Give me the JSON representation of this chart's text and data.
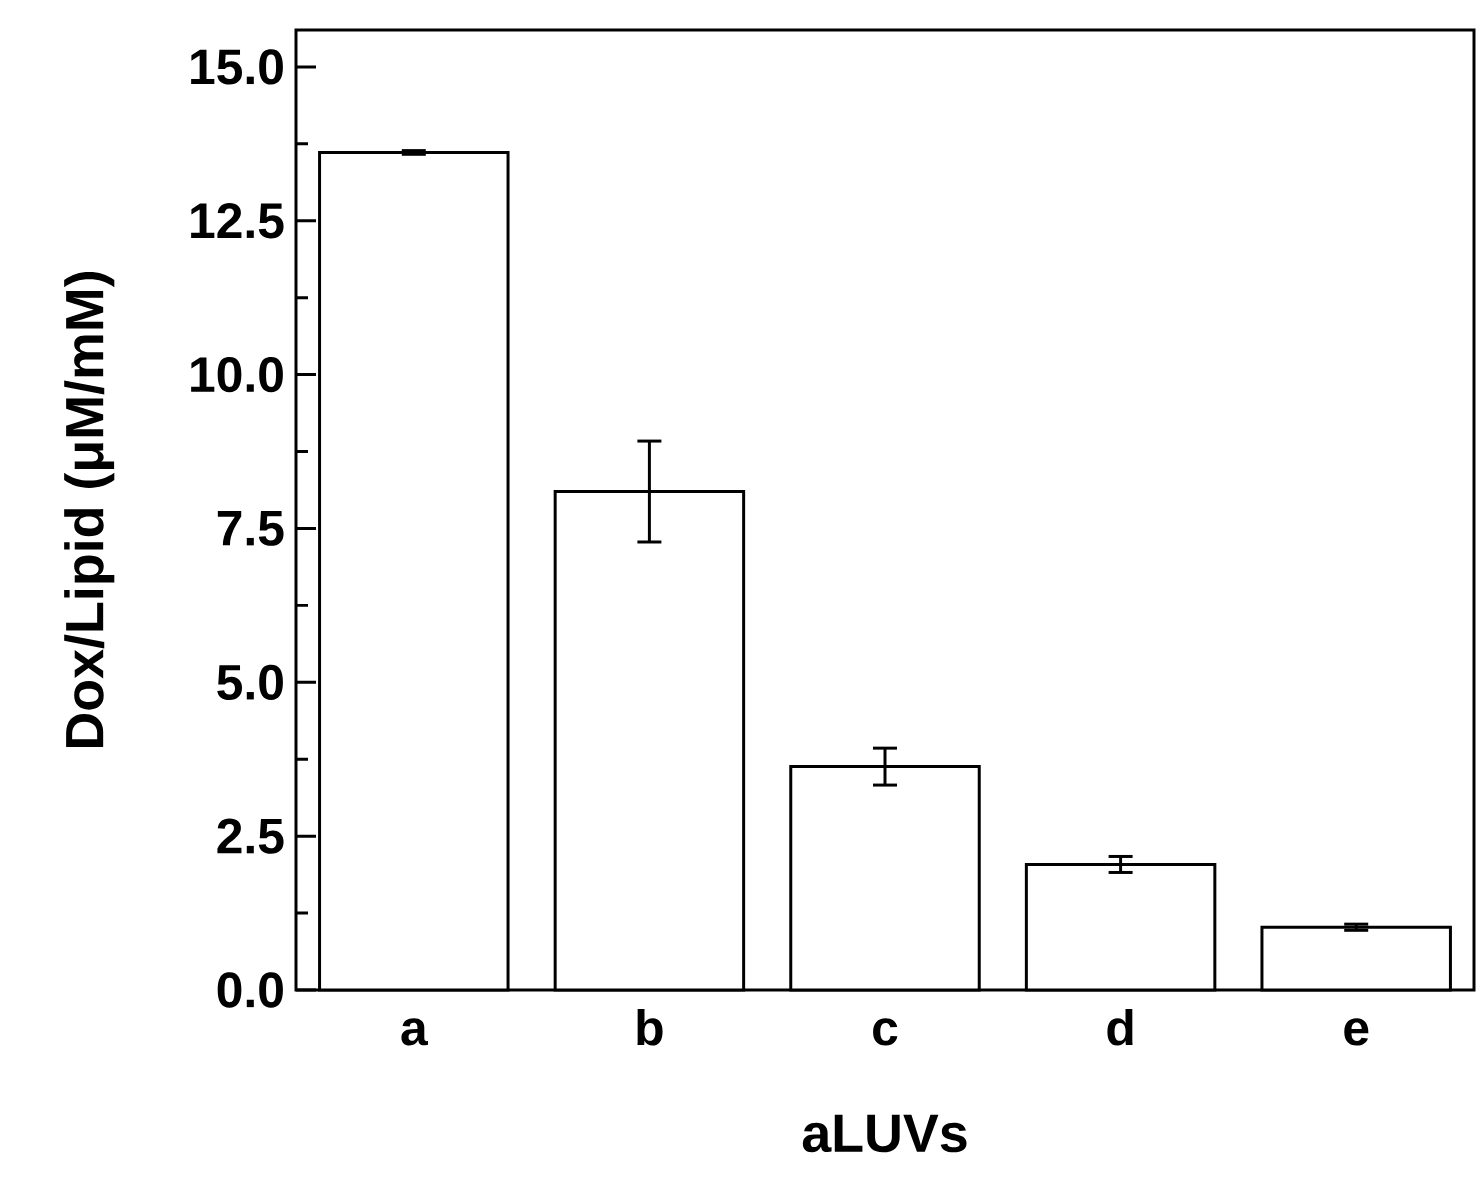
{
  "chart_data": {
    "type": "bar",
    "xlabel": "aLUVs",
    "ylabel": "Dox/Lipid (μM/mM)",
    "categories": [
      "a",
      "b",
      "c",
      "d",
      "e"
    ],
    "values": [
      13.61,
      8.1,
      3.63,
      2.04,
      1.02
    ],
    "errors": [
      0.03,
      0.82,
      0.3,
      0.13,
      0.05
    ],
    "color": "#ffffff",
    "ylim": [
      0,
      15.6
    ],
    "yticks": [
      {
        "value": 0,
        "label": "0.0"
      },
      {
        "value": 2.5,
        "label": "2.5"
      },
      {
        "value": 5,
        "label": "5.0"
      },
      {
        "value": 7.5,
        "label": "7.5"
      },
      {
        "value": 10,
        "label": "10.0"
      },
      {
        "value": 12.5,
        "label": "12.5"
      },
      {
        "value": 15,
        "label": "15.0"
      }
    ],
    "grid": false
  }
}
